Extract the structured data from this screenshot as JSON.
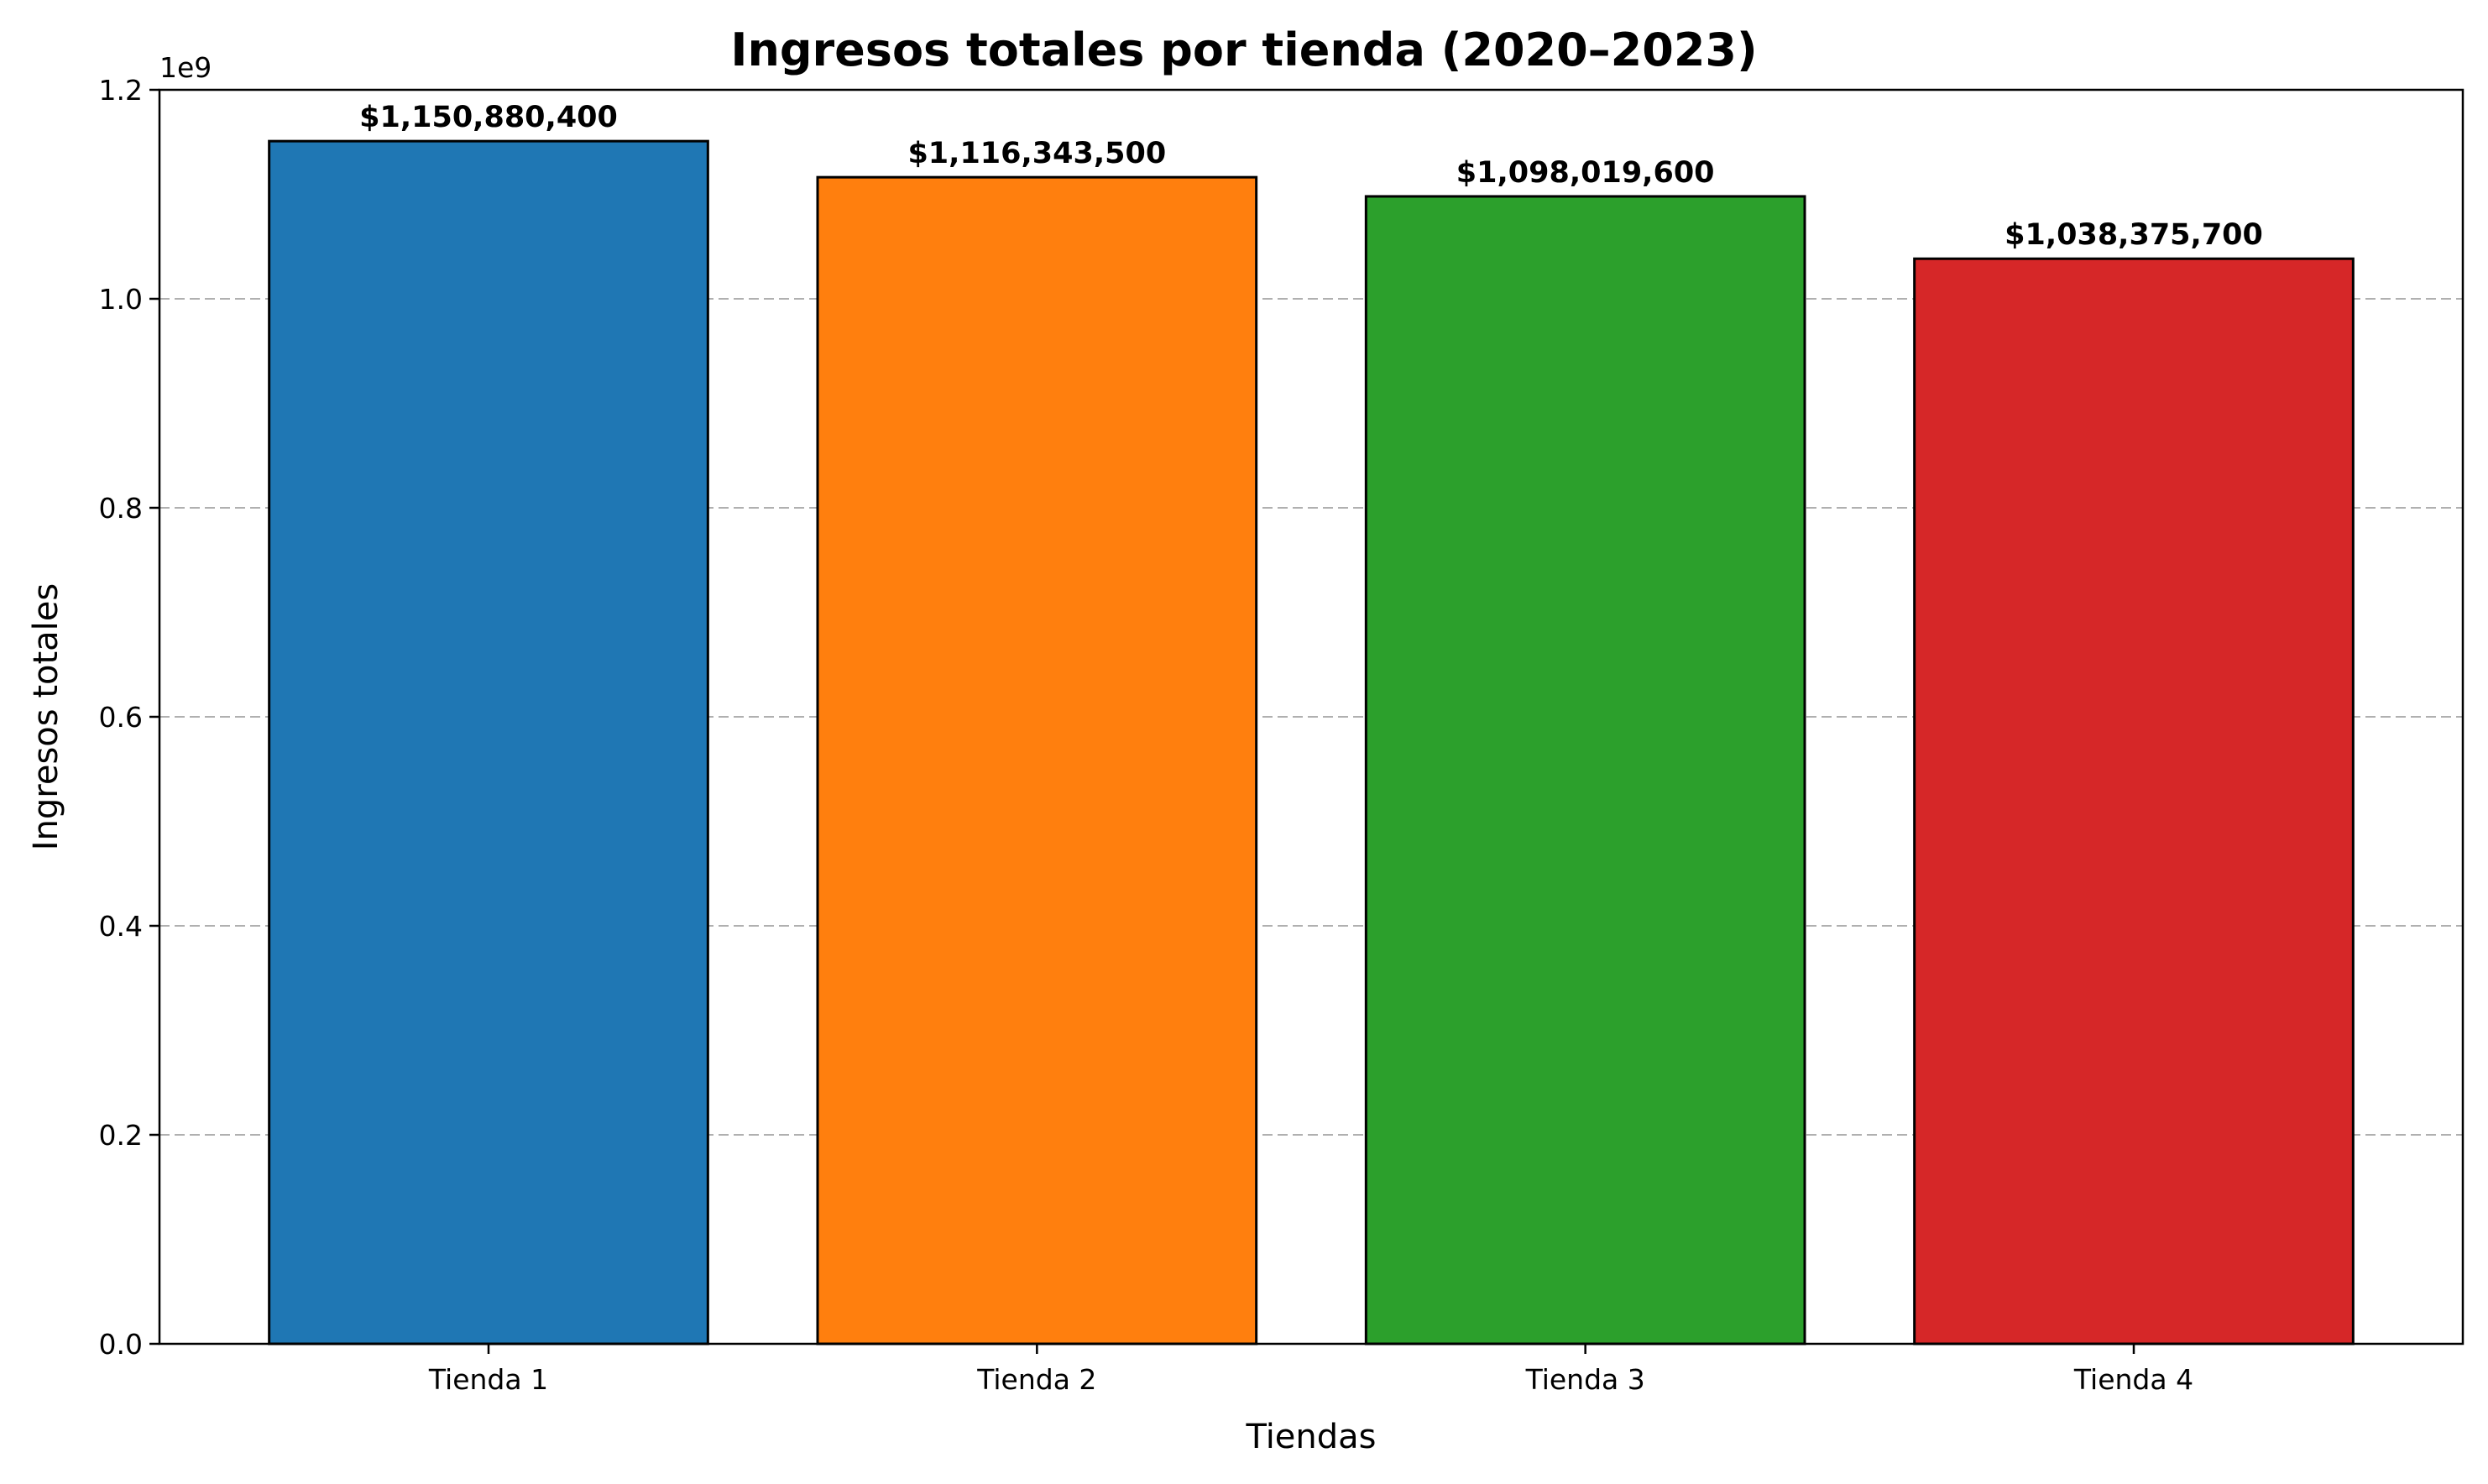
{
  "chart_data": {
    "type": "bar",
    "title": "Ingresos totales por tienda (2020–2023)",
    "xlabel": "Tiendas",
    "ylabel": "Ingresos totales",
    "y_offset_label": "1e9",
    "categories": [
      "Tienda 1",
      "Tienda 2",
      "Tienda 3",
      "Tienda 4"
    ],
    "values": [
      1150880400,
      1116343500,
      1098019600,
      1038375700
    ],
    "value_labels": [
      "$1,150,880,400",
      "$1,116,343,500",
      "$1,098,019,600",
      "$1,038,375,700"
    ],
    "colors": [
      "#1f77b4",
      "#ff7f0e",
      "#2ca02c",
      "#d62728"
    ],
    "ylim": [
      0,
      1200000000
    ],
    "yticks": [
      0,
      200000000,
      400000000,
      600000000,
      800000000,
      1000000000,
      1200000000
    ],
    "ytick_labels": [
      "0.0",
      "0.2",
      "0.4",
      "0.6",
      "0.8",
      "1.0",
      "1.2"
    ],
    "grid": "y-dashed",
    "legend": "none"
  }
}
